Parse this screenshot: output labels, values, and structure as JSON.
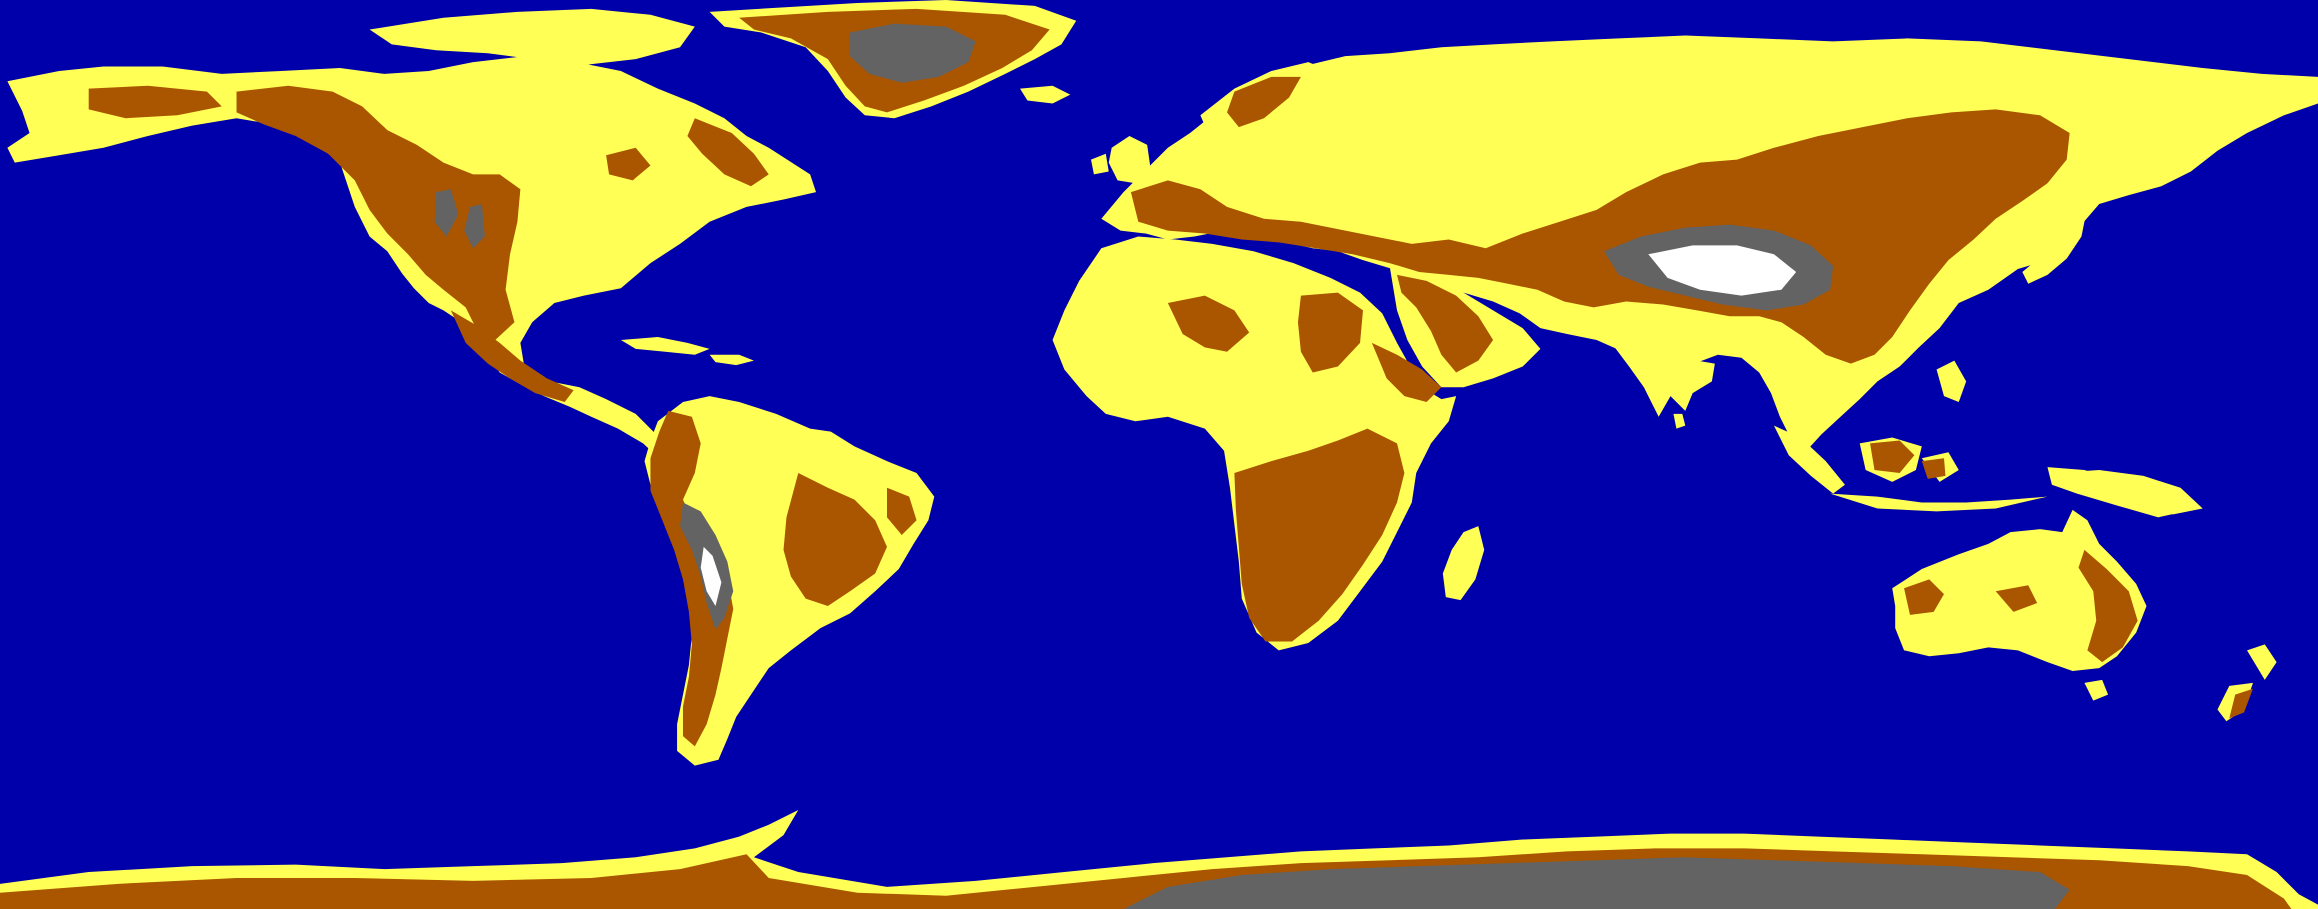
{
  "map": {
    "kind": "elevation-classified world map",
    "projection": "equirectangular",
    "colors": {
      "ocean": "#0000aa",
      "lowland": "#ffff55",
      "upland": "#aa5500",
      "highland": "#636363",
      "summit": "#ffffff"
    },
    "legend": []
  }
}
